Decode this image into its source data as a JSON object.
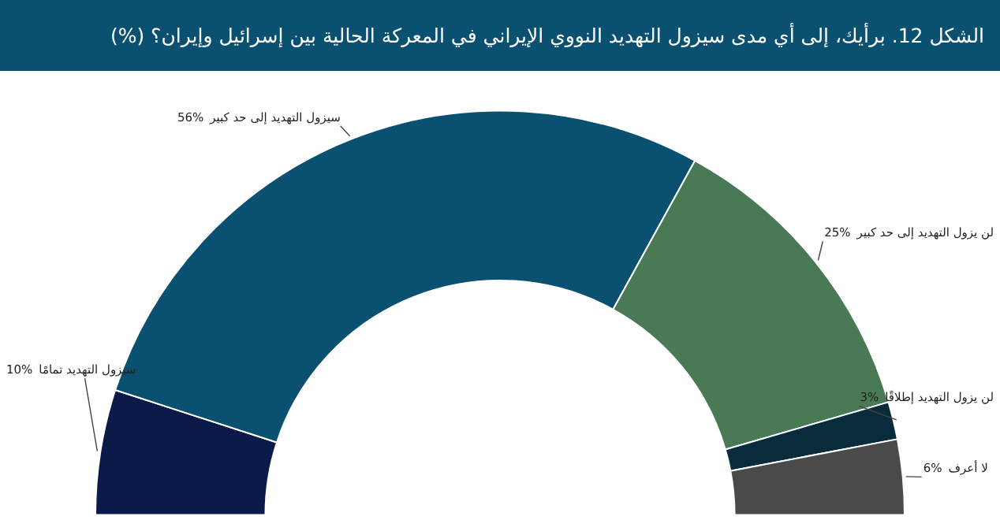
{
  "chart_data": {
    "type": "donut",
    "title": "الشكل 12. برأيك، إلى أي مدى سيزول التهديد النووي الإيراني في المعركة الحالية بين إسرائيل وإيران؟ (%)",
    "categories": [
      "سيزول التهديد تمامًا",
      "سيزول التهديد إلى حد كبير",
      "لن يزول التهديد إلى حد كبير",
      "لن يزول التهديد إطلاقًا",
      "لا أعرف"
    ],
    "values": [
      10,
      56,
      25,
      3,
      6
    ],
    "colors": [
      "#0c1a4a",
      "#0a5070",
      "#4a7a55",
      "#082c3c",
      "#4a4a4a"
    ],
    "value_labels": [
      "10%",
      "56%",
      "25%",
      "3%",
      "6%"
    ],
    "legend": false
  }
}
